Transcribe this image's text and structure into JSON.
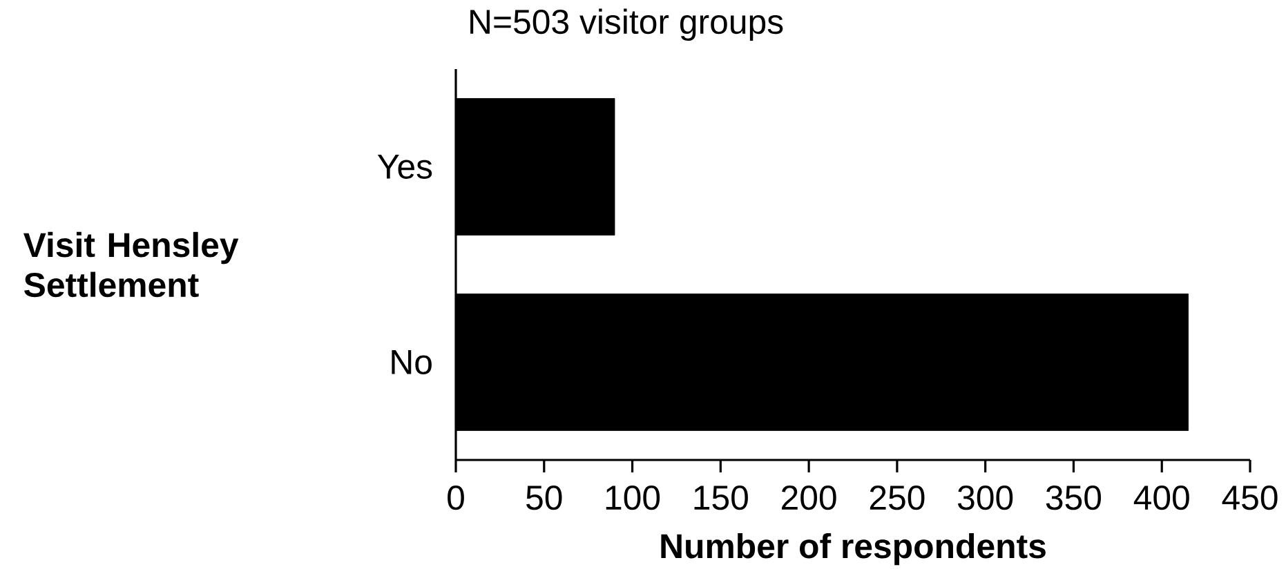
{
  "chart_data": {
    "type": "bar",
    "orientation": "horizontal",
    "title": "N=503 visitor groups",
    "ylabel": "Visit Hensley Settlement",
    "xlabel": "Number of respondents",
    "categories": [
      "Yes",
      "No"
    ],
    "values": [
      90,
      415
    ],
    "color": "#000000",
    "xlim": [
      0,
      450
    ],
    "xticks": [
      0,
      50,
      100,
      150,
      200,
      250,
      300,
      350,
      400,
      450
    ]
  }
}
